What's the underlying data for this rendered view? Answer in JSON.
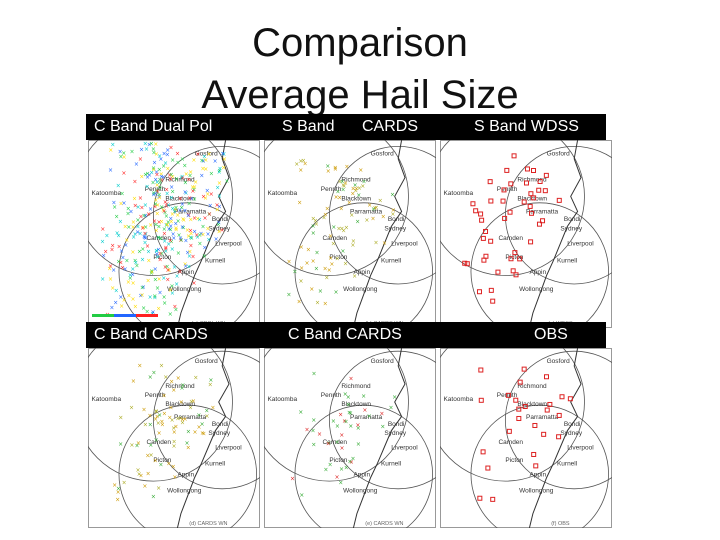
{
  "title": {
    "line1": "Comparison",
    "line2": "Average Hail Size"
  },
  "row_labels": {
    "top": [
      "C Band Dual Pol",
      "S Band",
      "CARDS",
      "S Band WDSS"
    ],
    "bottom": [
      "C Band CARDS",
      "C Band CARDS",
      "OBS"
    ]
  },
  "map_places": [
    "Gosford",
    "Richmond",
    "Penrith",
    "Katoomba",
    "Blacktown",
    "Parramatta",
    "Bondi",
    "Sydney",
    "Camden",
    "Picton",
    "Wollongong",
    "Kurnell",
    "Appin",
    "Liverpool"
  ],
  "panels": [
    {
      "id": "top-left",
      "points": 380,
      "palette": [
        "#22cc44",
        "#2266ff",
        "#ff2222",
        "#ffdd00",
        "#00cccc"
      ],
      "footer": "(a) CPOL WN"
    },
    {
      "id": "top-middle",
      "points": 90,
      "palette": [
        "#33aa33",
        "#aaaa22",
        "#cc9900"
      ],
      "footer": "(b) CARDS WN"
    },
    {
      "id": "top-right",
      "points": 45,
      "palette": [
        "#dd2222"
      ],
      "footer": "(c) WDSS"
    },
    {
      "id": "bottom-left",
      "points": 85,
      "palette": [
        "#33aa33",
        "#aaaa22",
        "#cc9900"
      ],
      "footer": "(d) CARDS WN"
    },
    {
      "id": "bottom-middle",
      "points": 45,
      "palette": [
        "#33aa33",
        "#dd2222"
      ],
      "footer": "(e) CARDS WN"
    },
    {
      "id": "bottom-right",
      "points": 25,
      "palette": [
        "#dd2222"
      ],
      "footer": "(f) OBS"
    }
  ],
  "colors": {
    "background": "#ffffff",
    "label_bar": "#000000",
    "range_ring": "#555555",
    "coast": "#333333"
  }
}
